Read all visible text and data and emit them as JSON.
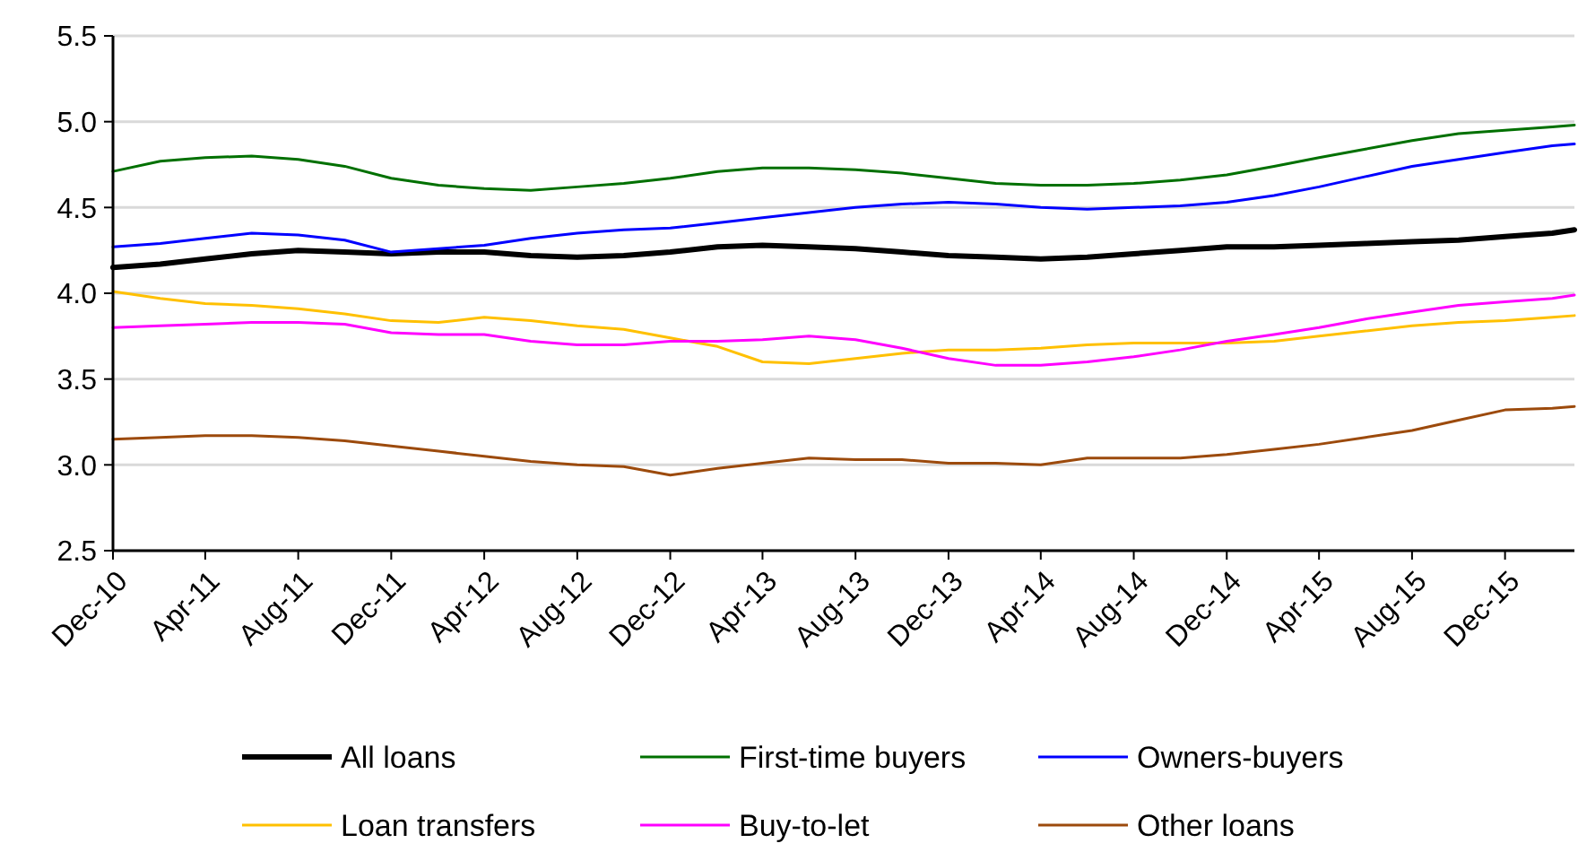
{
  "chart_data": {
    "type": "line",
    "x": [
      "2010-12",
      "2011-02",
      "2011-04",
      "2011-06",
      "2011-08",
      "2011-10",
      "2011-12",
      "2012-02",
      "2012-04",
      "2012-06",
      "2012-08",
      "2012-10",
      "2012-12",
      "2013-02",
      "2013-04",
      "2013-06",
      "2013-08",
      "2013-10",
      "2013-12",
      "2014-02",
      "2014-04",
      "2014-06",
      "2014-08",
      "2014-10",
      "2014-12",
      "2015-02",
      "2015-04",
      "2015-06",
      "2015-08",
      "2015-10",
      "2015-12",
      "2016-02",
      "2016-03"
    ],
    "series": [
      {
        "name": "All loans",
        "color": "#000000",
        "values": [
          4.15,
          4.17,
          4.2,
          4.23,
          4.25,
          4.24,
          4.23,
          4.24,
          4.24,
          4.22,
          4.21,
          4.22,
          4.24,
          4.27,
          4.28,
          4.27,
          4.26,
          4.24,
          4.22,
          4.21,
          4.2,
          4.21,
          4.23,
          4.25,
          4.27,
          4.27,
          4.28,
          4.29,
          4.3,
          4.31,
          4.33,
          4.35,
          4.37
        ]
      },
      {
        "name": "First-time buyers",
        "color": "#007000",
        "values": [
          4.71,
          4.77,
          4.79,
          4.8,
          4.78,
          4.74,
          4.67,
          4.63,
          4.61,
          4.6,
          4.62,
          4.64,
          4.67,
          4.71,
          4.73,
          4.73,
          4.72,
          4.7,
          4.67,
          4.64,
          4.63,
          4.63,
          4.64,
          4.66,
          4.69,
          4.74,
          4.79,
          4.84,
          4.89,
          4.93,
          4.95,
          4.97,
          4.98
        ]
      },
      {
        "name": "Owners-buyers",
        "color": "#0000ff",
        "values": [
          4.27,
          4.29,
          4.32,
          4.35,
          4.34,
          4.31,
          4.24,
          4.26,
          4.28,
          4.32,
          4.35,
          4.37,
          4.38,
          4.41,
          4.44,
          4.47,
          4.5,
          4.52,
          4.53,
          4.52,
          4.5,
          4.49,
          4.5,
          4.51,
          4.53,
          4.57,
          4.62,
          4.68,
          4.74,
          4.78,
          4.82,
          4.86,
          4.87
        ]
      },
      {
        "name": "Loan transfers",
        "color": "#ffc000",
        "values": [
          4.01,
          3.97,
          3.94,
          3.93,
          3.91,
          3.88,
          3.84,
          3.83,
          3.86,
          3.84,
          3.81,
          3.79,
          3.74,
          3.69,
          3.6,
          3.59,
          3.62,
          3.65,
          3.67,
          3.67,
          3.68,
          3.7,
          3.71,
          3.71,
          3.71,
          3.72,
          3.75,
          3.78,
          3.81,
          3.83,
          3.84,
          3.86,
          3.87
        ]
      },
      {
        "name": "Buy-to-let",
        "color": "#ff00ff",
        "values": [
          3.8,
          3.81,
          3.82,
          3.83,
          3.83,
          3.82,
          3.77,
          3.76,
          3.76,
          3.72,
          3.7,
          3.7,
          3.72,
          3.72,
          3.73,
          3.75,
          3.73,
          3.68,
          3.62,
          3.58,
          3.58,
          3.6,
          3.63,
          3.67,
          3.72,
          3.76,
          3.8,
          3.85,
          3.89,
          3.93,
          3.95,
          3.97,
          3.99
        ]
      },
      {
        "name": "Other loans",
        "color": "#9c4a0c",
        "values": [
          3.15,
          3.16,
          3.17,
          3.17,
          3.16,
          3.14,
          3.11,
          3.08,
          3.05,
          3.02,
          3,
          2.99,
          2.94,
          2.98,
          3.01,
          3.04,
          3.03,
          3.03,
          3.01,
          3.01,
          3,
          3.04,
          3.04,
          3.04,
          3.06,
          3.09,
          3.12,
          3.16,
          3.2,
          3.26,
          3.32,
          3.33,
          3.34
        ]
      }
    ],
    "xlim": [
      "2010-12",
      "2016-03"
    ],
    "xticks": [
      {
        "value": "2010-12",
        "label": "Dec-10"
      },
      {
        "value": "2011-04",
        "label": "Apr-11"
      },
      {
        "value": "2011-08",
        "label": "Aug-11"
      },
      {
        "value": "2011-12",
        "label": "Dec-11"
      },
      {
        "value": "2012-04",
        "label": "Apr-12"
      },
      {
        "value": "2012-08",
        "label": "Aug-12"
      },
      {
        "value": "2012-12",
        "label": "Dec-12"
      },
      {
        "value": "2013-04",
        "label": "Apr-13"
      },
      {
        "value": "2013-08",
        "label": "Aug-13"
      },
      {
        "value": "2013-12",
        "label": "Dec-13"
      },
      {
        "value": "2014-04",
        "label": "Apr-14"
      },
      {
        "value": "2014-08",
        "label": "Aug-14"
      },
      {
        "value": "2014-12",
        "label": "Dec-14"
      },
      {
        "value": "2015-04",
        "label": "Apr-15"
      },
      {
        "value": "2015-08",
        "label": "Aug-15"
      },
      {
        "value": "2015-12",
        "label": "Dec-15"
      }
    ],
    "ylim": [
      2.5,
      5.5
    ],
    "yticks": [
      2.5,
      {
        "value": 3,
        "label": "3.0"
      },
      3.5,
      {
        "value": 4,
        "label": "4.0"
      },
      4.5,
      {
        "value": 5,
        "label": "5.0"
      },
      5.5
    ],
    "grid": "y",
    "legend": "bottom",
    "marker": "none",
    "line_style": "solid"
  }
}
